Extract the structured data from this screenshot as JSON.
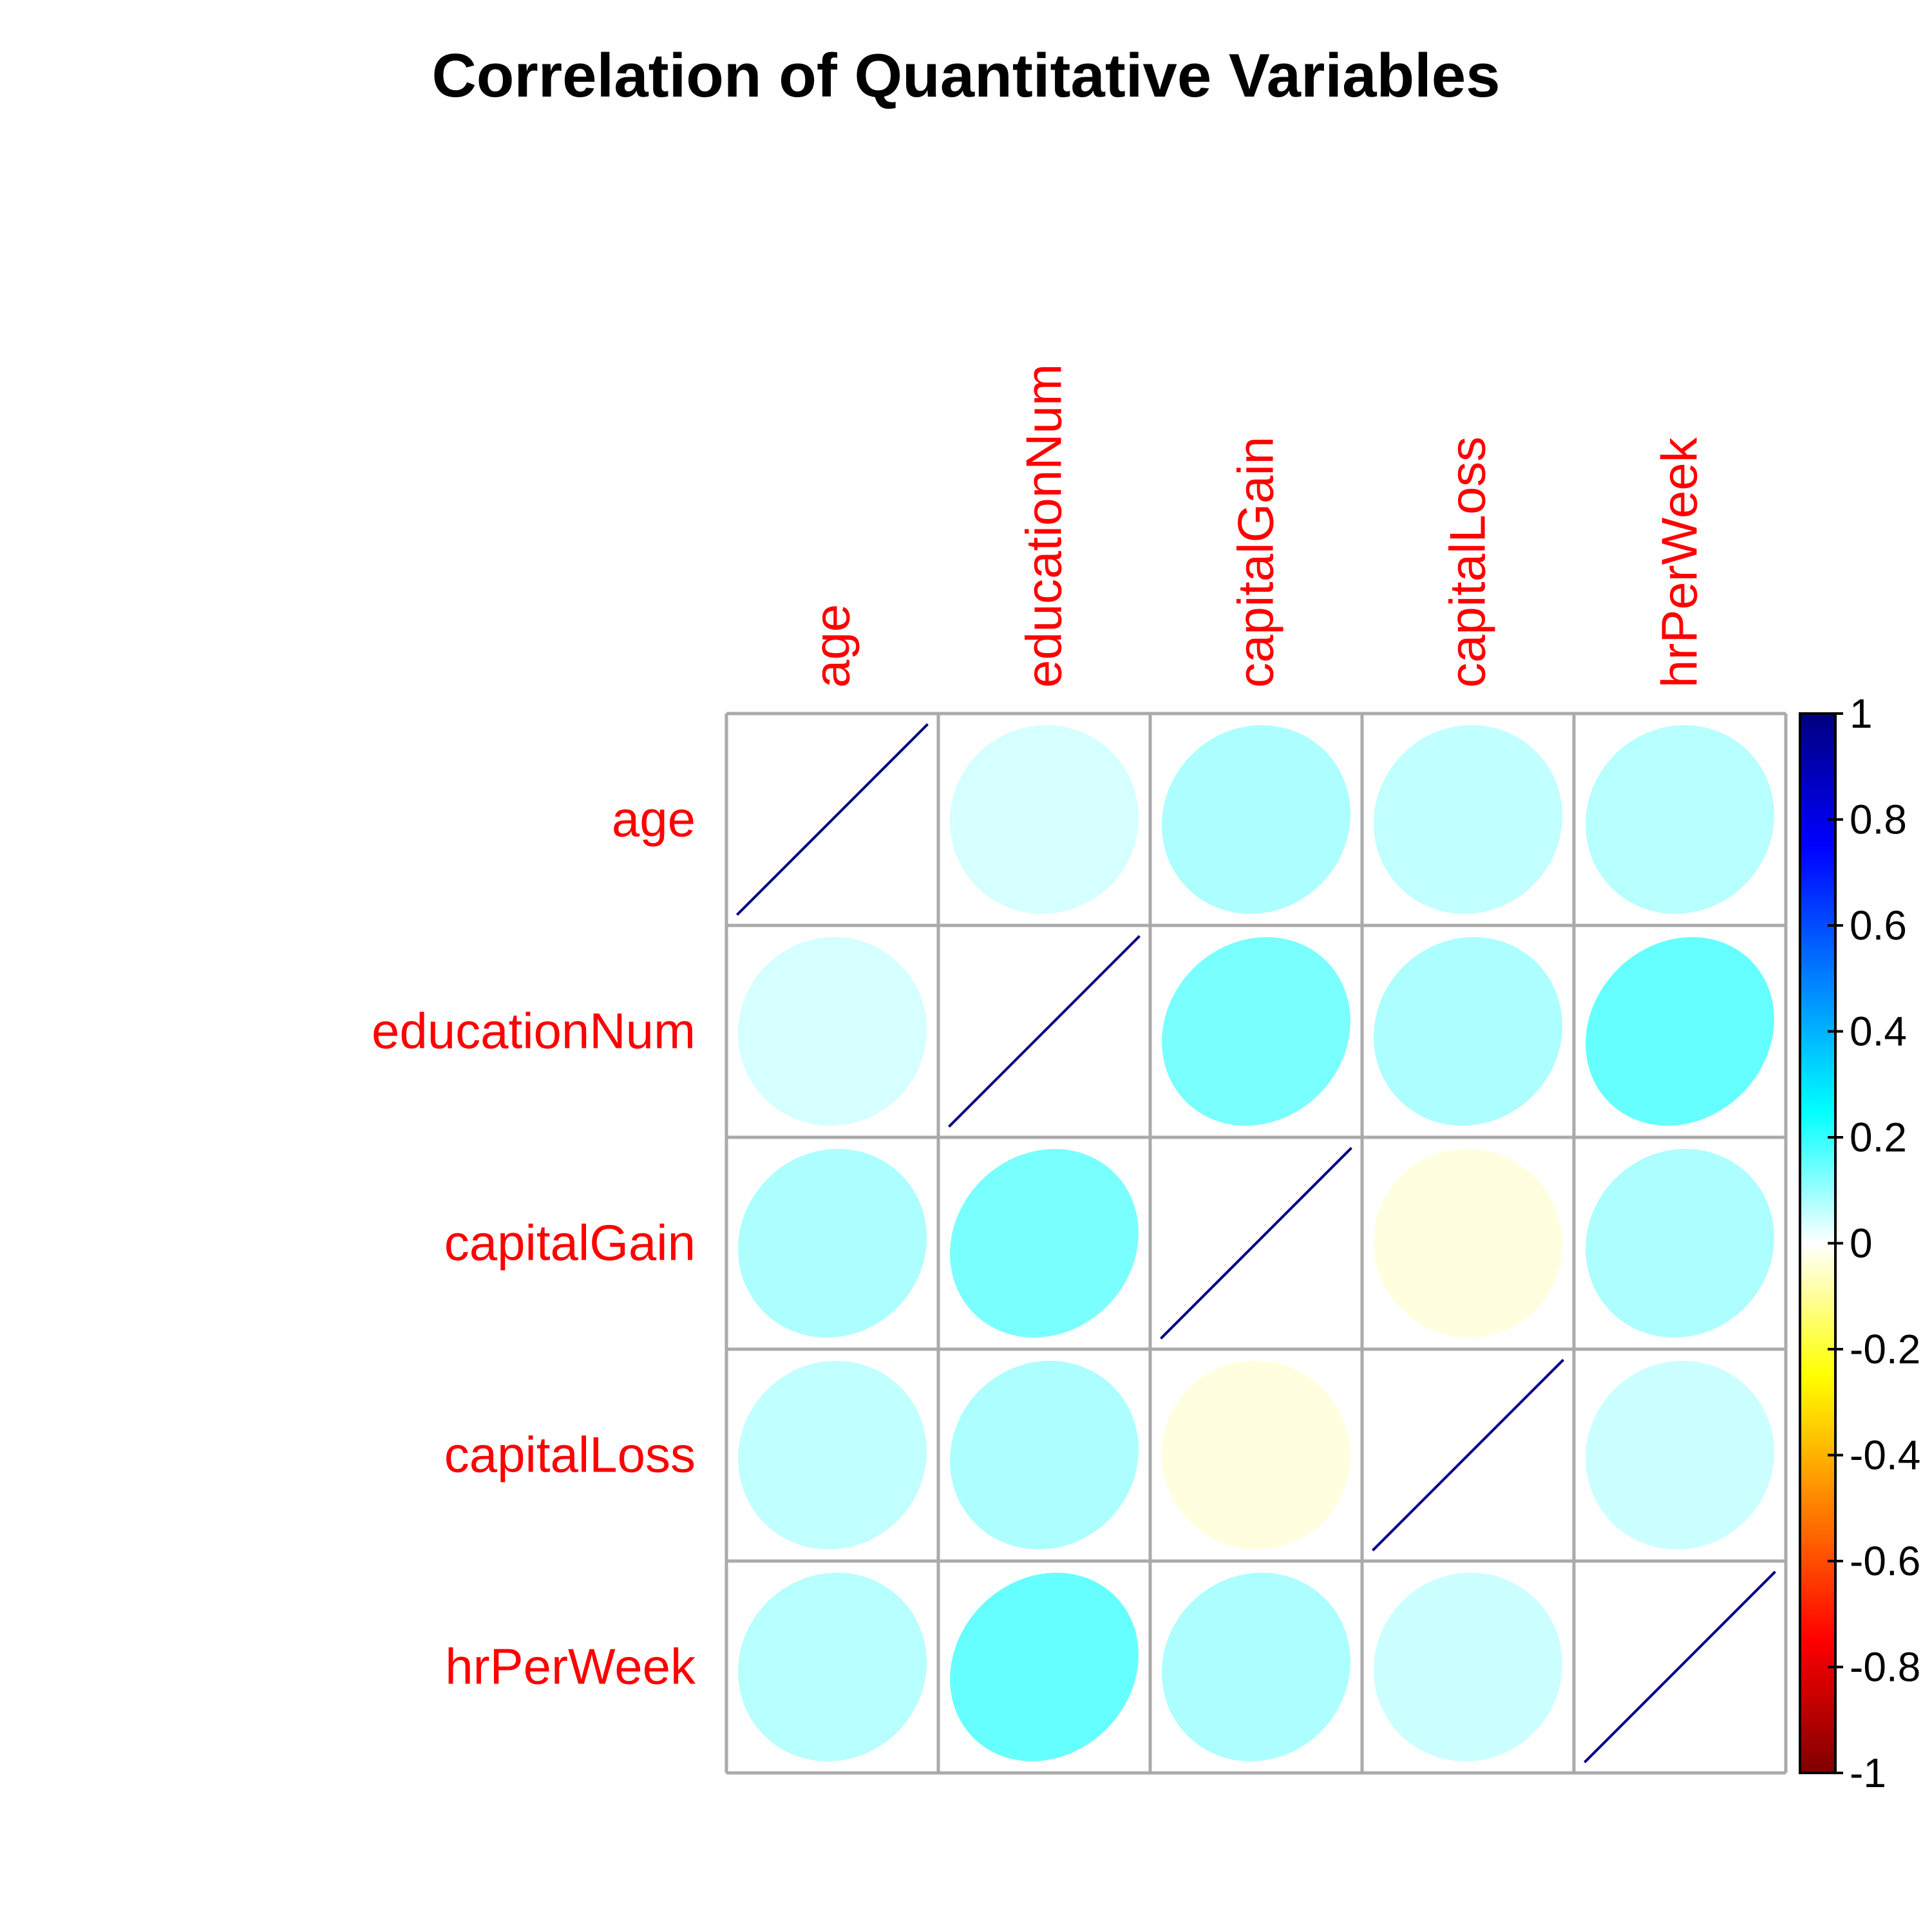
{
  "chart_data": {
    "type": "heatmap",
    "title": "Correlation of Quantitative Variables",
    "variables": [
      "age",
      "educationNum",
      "capitalGain",
      "capitalLoss",
      "hrPerWeek"
    ],
    "matrix": [
      [
        1.0,
        0.04,
        0.08,
        0.06,
        0.07
      ],
      [
        0.04,
        1.0,
        0.13,
        0.08,
        0.15
      ],
      [
        0.08,
        0.13,
        1.0,
        -0.03,
        0.08
      ],
      [
        0.06,
        0.08,
        -0.03,
        1.0,
        0.05
      ],
      [
        0.07,
        0.15,
        0.08,
        0.05,
        1.0
      ]
    ],
    "method": "ellipse",
    "colorbar": {
      "range": [
        -1,
        1
      ],
      "ticks": [
        "1",
        "0.8",
        "0.6",
        "0.4",
        "0.2",
        "0",
        "-0.2",
        "-0.4",
        "-0.6",
        "-0.8",
        "-1"
      ],
      "tick_values": [
        1,
        0.8,
        0.6,
        0.4,
        0.2,
        0,
        -0.2,
        -0.4,
        -0.6,
        -0.8,
        -1
      ],
      "palette": [
        "#67001F",
        "#B2182B",
        "#D6604D",
        "#F4A582",
        "#FDDBC7",
        "#FFFFFF",
        "#D1E5F0",
        "#92C5DE",
        "#4393C3",
        "#2166AC",
        "#053061"
      ]
    },
    "colors": {
      "label": "#FF0000",
      "grid": "#AAAAAA",
      "diagonal_line": "#00007F"
    }
  }
}
